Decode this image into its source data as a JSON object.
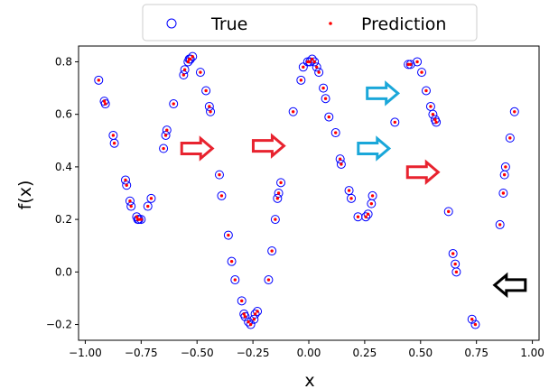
{
  "chart_data": {
    "type": "scatter",
    "xlabel": "x",
    "ylabel": "f(x)",
    "xlim": [
      -1.03,
      1.03
    ],
    "ylim": [
      -0.26,
      0.86
    ],
    "xticks": [
      -1.0,
      -0.75,
      -0.5,
      -0.25,
      0.0,
      0.25,
      0.5,
      0.75,
      1.0
    ],
    "xtick_labels": [
      "−1.00",
      "−0.75",
      "−0.50",
      "−0.25",
      "0.00",
      "0.25",
      "0.50",
      "0.75",
      "1.00"
    ],
    "yticks": [
      -0.2,
      0.0,
      0.2,
      0.4,
      0.6,
      0.8
    ],
    "ytick_labels": [
      "−0.2",
      "0.0",
      "0.2",
      "0.4",
      "0.6",
      "0.8"
    ],
    "grid": false,
    "legend": {
      "placement": "top-center",
      "entries": [
        {
          "label": "True",
          "marker": "open-circle",
          "color": "#0000ff"
        },
        {
          "label": "Prediction",
          "marker": "dot",
          "color": "#ff0000"
        }
      ]
    },
    "x": [
      -0.94,
      -0.915,
      -0.91,
      -0.875,
      -0.87,
      -0.82,
      -0.815,
      -0.8,
      -0.795,
      -0.77,
      -0.765,
      -0.76,
      -0.75,
      -0.72,
      -0.705,
      -0.65,
      -0.64,
      -0.635,
      -0.605,
      -0.56,
      -0.555,
      -0.54,
      -0.535,
      -0.53,
      -0.52,
      -0.485,
      -0.46,
      -0.445,
      -0.44,
      -0.4,
      -0.39,
      -0.36,
      -0.345,
      -0.33,
      -0.3,
      -0.29,
      -0.285,
      -0.27,
      -0.26,
      -0.245,
      -0.24,
      -0.23,
      -0.18,
      -0.165,
      -0.15,
      -0.14,
      -0.135,
      -0.125,
      -0.07,
      -0.035,
      -0.025,
      -0.005,
      0.005,
      0.015,
      0.025,
      0.035,
      0.045,
      0.065,
      0.075,
      0.09,
      0.12,
      0.14,
      0.145,
      0.18,
      0.19,
      0.22,
      0.255,
      0.265,
      0.28,
      0.285,
      0.385,
      0.445,
      0.455,
      0.485,
      0.505,
      0.525,
      0.545,
      0.555,
      0.565,
      0.57,
      0.625,
      0.645,
      0.655,
      0.66,
      0.73,
      0.745,
      0.855,
      0.87,
      0.875,
      0.88,
      0.9,
      0.92
    ],
    "series": [
      {
        "name": "True",
        "values": [
          0.73,
          0.65,
          0.64,
          0.52,
          0.49,
          0.35,
          0.33,
          0.27,
          0.25,
          0.21,
          0.2,
          0.2,
          0.2,
          0.25,
          0.28,
          0.47,
          0.52,
          0.54,
          0.64,
          0.75,
          0.77,
          0.8,
          0.81,
          0.81,
          0.82,
          0.76,
          0.69,
          0.63,
          0.61,
          0.37,
          0.29,
          0.14,
          0.04,
          -0.03,
          -0.11,
          -0.16,
          -0.17,
          -0.19,
          -0.2,
          -0.18,
          -0.16,
          -0.15,
          -0.03,
          0.08,
          0.2,
          0.28,
          0.3,
          0.34,
          0.61,
          0.73,
          0.78,
          0.8,
          0.8,
          0.81,
          0.8,
          0.78,
          0.76,
          0.7,
          0.66,
          0.59,
          0.53,
          0.43,
          0.41,
          0.31,
          0.28,
          0.21,
          0.21,
          0.22,
          0.26,
          0.29,
          0.57,
          0.79,
          0.79,
          0.8,
          0.76,
          0.69,
          0.63,
          0.6,
          0.58,
          0.57,
          0.23,
          0.07,
          0.03,
          0.0,
          -0.18,
          -0.2,
          0.18,
          0.3,
          0.37,
          0.4,
          0.51,
          0.61
        ]
      },
      {
        "name": "Prediction",
        "values": [
          0.73,
          0.65,
          0.64,
          0.52,
          0.49,
          0.35,
          0.33,
          0.27,
          0.25,
          0.21,
          0.2,
          0.2,
          0.2,
          0.25,
          0.28,
          0.47,
          0.52,
          0.54,
          0.64,
          0.75,
          0.77,
          0.8,
          0.81,
          0.81,
          0.82,
          0.76,
          0.69,
          0.63,
          0.61,
          0.37,
          0.29,
          0.14,
          0.04,
          -0.03,
          -0.11,
          -0.16,
          -0.17,
          -0.19,
          -0.2,
          -0.18,
          -0.16,
          -0.15,
          -0.03,
          0.08,
          0.2,
          0.28,
          0.3,
          0.34,
          0.61,
          0.73,
          0.78,
          0.8,
          0.8,
          0.81,
          0.8,
          0.78,
          0.76,
          0.7,
          0.66,
          0.59,
          0.53,
          0.43,
          0.41,
          0.31,
          0.28,
          0.21,
          0.21,
          0.22,
          0.26,
          0.29,
          0.57,
          0.79,
          0.79,
          0.8,
          0.76,
          0.69,
          0.63,
          0.6,
          0.58,
          0.57,
          0.23,
          0.07,
          0.03,
          0.0,
          -0.18,
          -0.2,
          0.18,
          0.3,
          0.37,
          0.4,
          0.51,
          0.61
        ]
      }
    ],
    "annotations": [
      {
        "type": "arrow",
        "direction": "right",
        "color": "#e8232f",
        "x": -0.5,
        "y": 0.47
      },
      {
        "type": "arrow",
        "direction": "right",
        "color": "#e8232f",
        "x": -0.18,
        "y": 0.48
      },
      {
        "type": "arrow",
        "direction": "right",
        "color": "#1aa7d9",
        "x": 0.33,
        "y": 0.68
      },
      {
        "type": "arrow",
        "direction": "right",
        "color": "#1aa7d9",
        "x": 0.29,
        "y": 0.47
      },
      {
        "type": "arrow",
        "direction": "right",
        "color": "#e8232f",
        "x": 0.51,
        "y": 0.38
      },
      {
        "type": "arrow",
        "direction": "left",
        "color": "#000000",
        "x": 0.9,
        "y": -0.05
      }
    ]
  }
}
